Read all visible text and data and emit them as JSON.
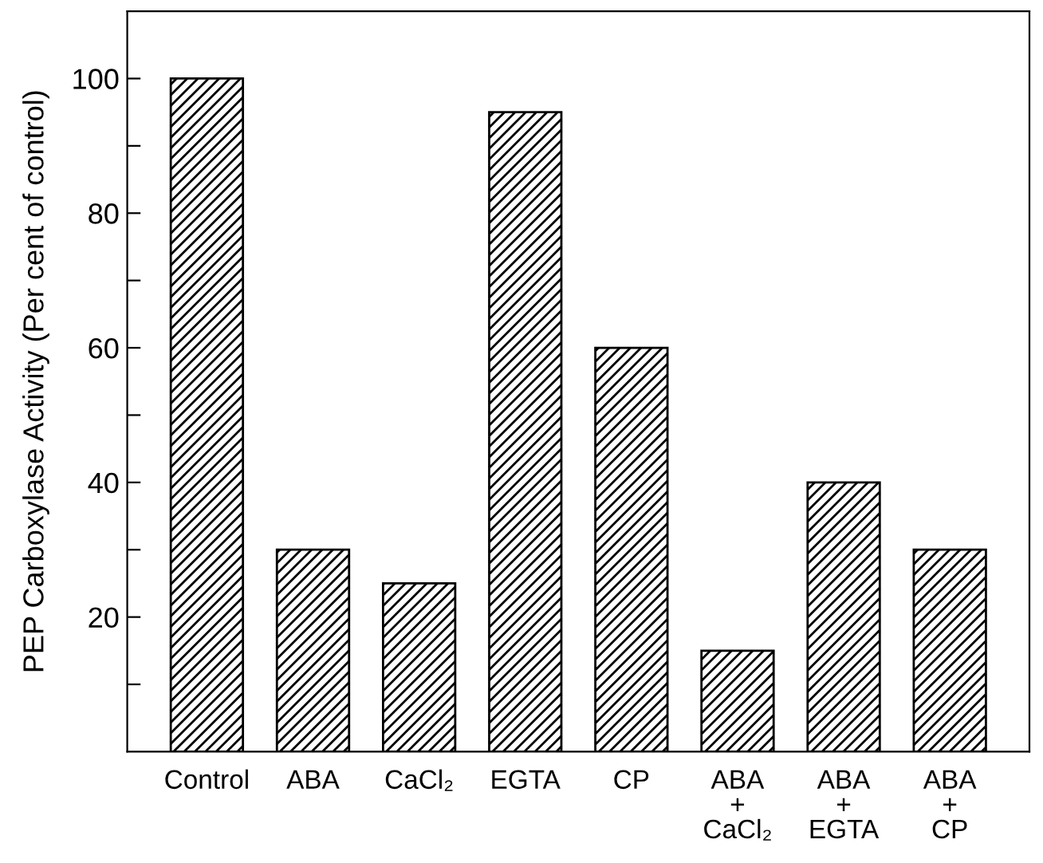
{
  "chart_data": {
    "type": "bar",
    "ylabel": "PEP Carboxylase Activity (Per cent of control)",
    "categories": [
      "Control",
      "ABA",
      "CaCl₂",
      "EGTA",
      "CP",
      "ABA\n+\nCaCl₂",
      "ABA\n+\nEGTA",
      "ABA\n+\nCP"
    ],
    "values": [
      100,
      30,
      25,
      95,
      60,
      15,
      40,
      30
    ],
    "color": "#000000",
    "ylim": [
      0,
      110
    ],
    "yticks": [
      {
        "value": 10,
        "label": null
      },
      20,
      {
        "value": 30,
        "label": null
      },
      40,
      {
        "value": 50,
        "label": null
      },
      60,
      {
        "value": 70,
        "label": null
      },
      80,
      {
        "value": 90,
        "label": null
      },
      100
    ],
    "grid": false
  }
}
